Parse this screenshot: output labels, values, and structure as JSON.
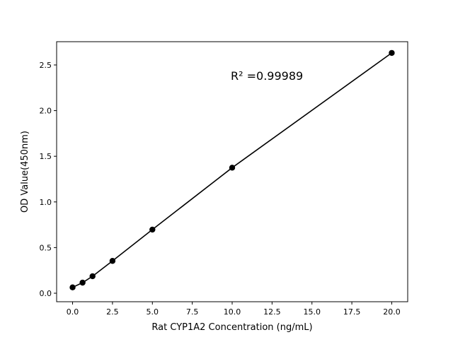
{
  "chart_data": {
    "type": "line",
    "xlabel": "Rat CYP1A2 Concentration (ng/mL)",
    "ylabel": "OD Value(450nm)",
    "xlim": [
      -1.0,
      21.0
    ],
    "ylim": [
      -0.093,
      2.755
    ],
    "xticks": [
      "0.0",
      "2.5",
      "5.0",
      "7.5",
      "10.0",
      "12.5",
      "15.0",
      "17.5",
      "20.0"
    ],
    "yticks": [
      "0.0",
      "0.5",
      "1.0",
      "1.5",
      "2.0",
      "2.5"
    ],
    "grid": false,
    "series": [
      {
        "x": [
          0,
          0.625,
          1.25,
          2.5,
          5,
          10,
          20
        ],
        "y": [
          0.064,
          0.116,
          0.186,
          0.354,
          0.697,
          1.375,
          2.632
        ],
        "color": "#000000",
        "marker": "circle"
      }
    ],
    "annotation": {
      "text": "R² =0.99989",
      "x": 10.0,
      "y": 2.36
    }
  }
}
